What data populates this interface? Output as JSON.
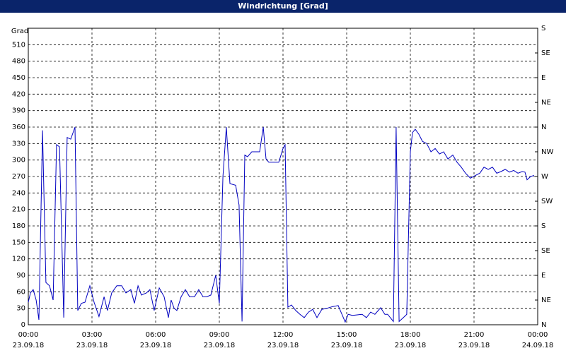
{
  "chart_data": {
    "type": "line",
    "title": "Windrichtung [Grad]",
    "y_label": "Grad",
    "xlim": [
      0,
      24
    ],
    "xticks": [
      {
        "value": 0,
        "label": "00:00"
      },
      {
        "value": 3,
        "label": "03:00"
      },
      {
        "value": 6,
        "label": "06:00"
      },
      {
        "value": 9,
        "label": "09:00"
      },
      {
        "value": 12,
        "label": "12:00"
      },
      {
        "value": 15,
        "label": "15:00"
      },
      {
        "value": 18,
        "label": "18:00"
      },
      {
        "value": 21,
        "label": "21:00"
      },
      {
        "value": 24,
        "label": "00:00"
      }
    ],
    "xtick_dates": [
      "23.09.18",
      "23.09.18",
      "23.09.18",
      "23.09.18",
      "23.09.18",
      "23.09.18",
      "23.09.18",
      "23.09.18",
      "24.09.18"
    ],
    "ylim": [
      0,
      540
    ],
    "yticks": [
      0,
      30,
      60,
      90,
      120,
      150,
      180,
      210,
      240,
      270,
      300,
      330,
      360,
      390,
      420,
      450,
      480,
      510
    ],
    "y2lim": [
      0,
      540
    ],
    "y2ticks": [
      {
        "value": 0,
        "label": "N"
      },
      {
        "value": 45,
        "label": "NE"
      },
      {
        "value": 90,
        "label": "E"
      },
      {
        "value": 135,
        "label": "SE"
      },
      {
        "value": 180,
        "label": "S"
      },
      {
        "value": 225,
        "label": "SW"
      },
      {
        "value": 270,
        "label": "W"
      },
      {
        "value": 315,
        "label": "NW"
      },
      {
        "value": 360,
        "label": "N"
      },
      {
        "value": 405,
        "label": "NE"
      },
      {
        "value": 450,
        "label": "E"
      },
      {
        "value": 495,
        "label": "SE"
      },
      {
        "value": 540,
        "label": "S"
      }
    ],
    "grid": true,
    "x": [
      0,
      0.1,
      0.23,
      0.37,
      0.5,
      0.67,
      0.83,
      1,
      1.17,
      1.33,
      1.47,
      1.67,
      1.83,
      2,
      2.2,
      2.33,
      2.5,
      2.67,
      2.9,
      3.1,
      3.33,
      3.57,
      3.73,
      3.93,
      4.17,
      4.4,
      4.6,
      4.83,
      5,
      5.17,
      5.33,
      5.57,
      5.73,
      5.93,
      6.17,
      6.4,
      6.6,
      6.73,
      6.87,
      7,
      7.2,
      7.4,
      7.6,
      7.83,
      8.03,
      8.23,
      8.4,
      8.6,
      8.83,
      9,
      9.17,
      9.33,
      9.5,
      9.77,
      9.93,
      10.07,
      10.2,
      10.33,
      10.53,
      10.73,
      10.9,
      11.07,
      11.2,
      11.33,
      11.57,
      11.8,
      12,
      12.1,
      12.23,
      12.4,
      12.6,
      12.8,
      13,
      13.2,
      13.4,
      13.6,
      13.83,
      14.07,
      14.33,
      14.6,
      14.8,
      14.93,
      15.07,
      15.27,
      15.5,
      15.73,
      15.93,
      16.13,
      16.33,
      16.6,
      16.8,
      16.93,
      17.2,
      17.33,
      17.47,
      17.67,
      17.83,
      18,
      18.1,
      18.23,
      18.4,
      18.57,
      18.77,
      18.97,
      19.17,
      19.37,
      19.57,
      19.77,
      20,
      20.2,
      20.4,
      20.6,
      20.83,
      21.07,
      21.27,
      21.47,
      21.67,
      21.87,
      22.07,
      22.27,
      22.47,
      22.67,
      22.87,
      23.07,
      23.27,
      23.4,
      23.5,
      23.67,
      23.83
    ],
    "series": [
      {
        "color": "#0000c0",
        "values": [
          41,
          58,
          64,
          45,
          9,
          354,
          77,
          71,
          45,
          328,
          324,
          13,
          341,
          338,
          360,
          26,
          39,
          41,
          71,
          41,
          15,
          51,
          26,
          58,
          71,
          71,
          58,
          64,
          39,
          71,
          54,
          58,
          64,
          26,
          67,
          51,
          13,
          45,
          30,
          26,
          51,
          64,
          51,
          51,
          64,
          51,
          51,
          54,
          90,
          39,
          270,
          360,
          257,
          254,
          218,
          6,
          309,
          306,
          315,
          315,
          315,
          360,
          302,
          296,
          296,
          296,
          321,
          328,
          32,
          36,
          26,
          19,
          13,
          23,
          28,
          13,
          28,
          30,
          33,
          35,
          17,
          5,
          19,
          17,
          18,
          19,
          13,
          23,
          19,
          31,
          19,
          19,
          6,
          360,
          6,
          13,
          19,
          315,
          350,
          356,
          347,
          334,
          330,
          315,
          321,
          311,
          315,
          302,
          309,
          296,
          287,
          276,
          267,
          272,
          276,
          287,
          283,
          287,
          276,
          279,
          283,
          278,
          281,
          276,
          279,
          278,
          264,
          270,
          272
        ]
      }
    ]
  }
}
